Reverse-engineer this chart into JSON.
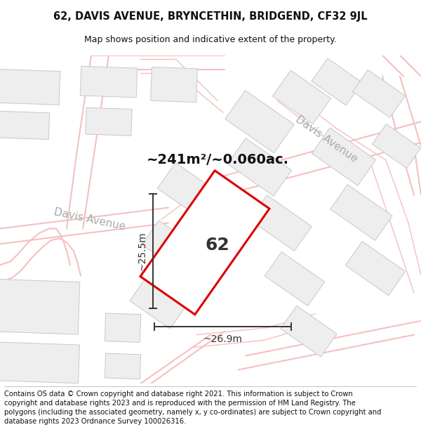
{
  "title_line1": "62, DAVIS AVENUE, BRYNCETHIN, BRIDGEND, CF32 9JL",
  "title_line2": "Map shows position and indicative extent of the property.",
  "area_text": "~241m²/~0.060ac.",
  "dim_width": "~26.9m",
  "dim_height": "~25.5m",
  "label_number": "62",
  "street_label1": "Davis Avenue",
  "street_label2": "Davis Avenue",
  "footer_text": "Contains OS data © Crown copyright and database right 2021. This information is subject to Crown copyright and database rights 2023 and is reproduced with the permission of HM Land Registry. The polygons (including the associated geometry, namely x, y co-ordinates) are subject to Crown copyright and database rights 2023 Ordnance Survey 100026316.",
  "map_bg": "#ffffff",
  "road_color": "#f5c0c0",
  "road_fill": "#ffffff",
  "building_fill": "#eeeeee",
  "building_edge": "#c8c8c8",
  "plot_fill": "#ffffff",
  "plot_edge": "#dd0000",
  "plot_lw": 2.2,
  "dim_color": "#333333",
  "street_label_color": "#aaaaaa",
  "title_fontsize": 10.5,
  "footer_fontsize": 7.2,
  "label_color": "#333333"
}
